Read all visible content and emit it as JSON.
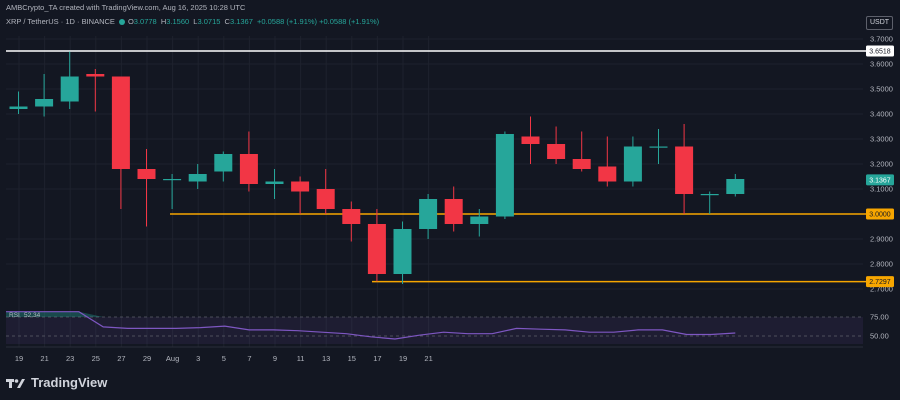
{
  "caption": "AMBCrypto_TA created with TradingView.com, Aug 16, 2025 10:28 UTC",
  "symbol": {
    "title": "XRP / TetherUS · 1D · BINANCE",
    "o_label": "O",
    "o_value": "3.0778",
    "h_label": "H",
    "h_value": "3.1560",
    "l_label": "L",
    "l_value": "3.0715",
    "c_label": "C",
    "c_value": "3.1367",
    "change": "+0.0588 (+1.91%)",
    "change2": "+0.0588 (+1.91%)"
  },
  "currency_button": "USDT",
  "brand": "TradingView",
  "icons": {
    "brand_logo": "tradingview-logo-icon"
  },
  "colors": {
    "up": "#26a69a",
    "down": "#f23645",
    "level": "#f7a600",
    "rsi": "#7e57c2",
    "bg": "#131722"
  },
  "chart_data": {
    "type": "candlestick",
    "price_ticks": [
      "3.7000",
      "3.6000",
      "3.5000",
      "3.4000",
      "3.3000",
      "3.2000",
      "3.1000",
      "2.9000",
      "2.8000",
      "2.7000"
    ],
    "date_ticks": [
      "19",
      "21",
      "23",
      "25",
      "27",
      "29",
      "Aug",
      "3",
      "5",
      "7",
      "9",
      "11",
      "13",
      "15",
      "17",
      "19",
      "21"
    ],
    "candles": [
      {
        "o": 3.42,
        "h": 3.49,
        "l": 3.4,
        "c": 3.43
      },
      {
        "o": 3.43,
        "h": 3.56,
        "l": 3.39,
        "c": 3.46
      },
      {
        "o": 3.45,
        "h": 3.65,
        "l": 3.42,
        "c": 3.55
      },
      {
        "o": 3.56,
        "h": 3.58,
        "l": 3.41,
        "c": 3.55
      },
      {
        "o": 3.55,
        "h": 3.55,
        "l": 3.02,
        "c": 3.18
      },
      {
        "o": 3.18,
        "h": 3.26,
        "l": 2.95,
        "c": 3.14
      },
      {
        "o": 3.14,
        "h": 3.16,
        "l": 3.02,
        "c": 3.14
      },
      {
        "o": 3.13,
        "h": 3.2,
        "l": 3.1,
        "c": 3.16
      },
      {
        "o": 3.17,
        "h": 3.25,
        "l": 3.13,
        "c": 3.24
      },
      {
        "o": 3.24,
        "h": 3.33,
        "l": 3.09,
        "c": 3.12
      },
      {
        "o": 3.12,
        "h": 3.18,
        "l": 3.06,
        "c": 3.13
      },
      {
        "o": 3.13,
        "h": 3.15,
        "l": 3.0,
        "c": 3.09
      },
      {
        "o": 3.1,
        "h": 3.18,
        "l": 3.0,
        "c": 3.02
      },
      {
        "o": 3.02,
        "h": 3.05,
        "l": 2.89,
        "c": 2.96
      },
      {
        "o": 2.96,
        "h": 3.02,
        "l": 2.73,
        "c": 2.76
      },
      {
        "o": 2.76,
        "h": 2.97,
        "l": 2.72,
        "c": 2.94
      },
      {
        "o": 2.94,
        "h": 3.08,
        "l": 2.9,
        "c": 3.06
      },
      {
        "o": 3.06,
        "h": 3.11,
        "l": 2.93,
        "c": 2.96
      },
      {
        "o": 2.96,
        "h": 3.02,
        "l": 2.91,
        "c": 2.99
      },
      {
        "o": 2.99,
        "h": 3.33,
        "l": 2.98,
        "c": 3.32
      },
      {
        "o": 3.31,
        "h": 3.39,
        "l": 3.2,
        "c": 3.28
      },
      {
        "o": 3.28,
        "h": 3.35,
        "l": 3.2,
        "c": 3.22
      },
      {
        "o": 3.22,
        "h": 3.33,
        "l": 3.17,
        "c": 3.18
      },
      {
        "o": 3.19,
        "h": 3.31,
        "l": 3.11,
        "c": 3.13
      },
      {
        "o": 3.13,
        "h": 3.31,
        "l": 3.11,
        "c": 3.27
      },
      {
        "o": 3.27,
        "h": 3.34,
        "l": 3.2,
        "c": 3.27
      },
      {
        "o": 3.27,
        "h": 3.36,
        "l": 3.0,
        "c": 3.08
      },
      {
        "o": 3.08,
        "h": 3.09,
        "l": 3.0,
        "c": 3.08
      },
      {
        "o": 3.08,
        "h": 3.16,
        "l": 3.07,
        "c": 3.14
      }
    ],
    "levels": [
      {
        "label": "3.6518",
        "value": 3.6518,
        "color": "#ffffff"
      },
      {
        "label": "3.0000",
        "value": 3.0,
        "color": "#f7a600"
      },
      {
        "label": "2.7297",
        "value": 2.7297,
        "color": "#f7a600"
      }
    ],
    "last_price": {
      "label": "3.1367",
      "value": 3.1367
    },
    "rsi": {
      "label": "RSI",
      "value_label": "52.34",
      "levels": [
        "75.00",
        "50.00"
      ],
      "values": [
        82,
        82,
        82,
        82,
        62,
        60,
        60,
        60,
        61,
        63,
        58,
        58,
        57,
        55,
        53,
        49,
        46,
        51,
        55,
        53,
        53,
        60,
        59,
        58,
        55,
        55,
        58,
        58,
        52,
        52,
        54
      ]
    }
  }
}
